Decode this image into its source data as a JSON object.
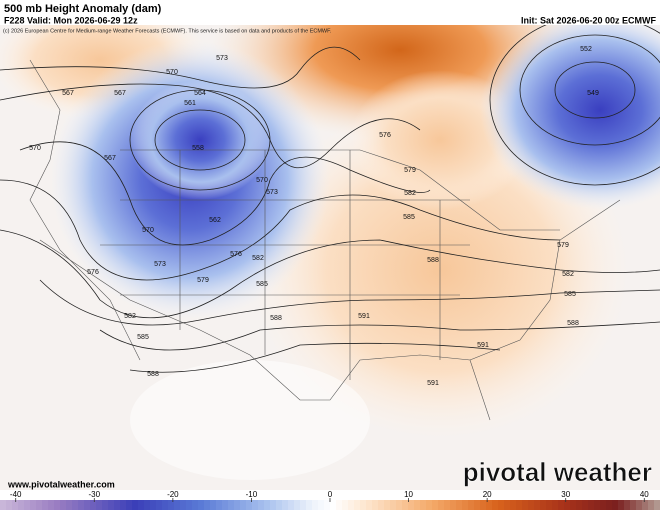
{
  "header": {
    "title": "500 mb Height Anomaly (dam)",
    "valid": "F228 Valid: Mon 2026-06-29 12z",
    "init": "Init: Sat 2026-06-20 00z ECMWF",
    "copyright": "(c) 2026 European Centre for Medium-range Weather Forecasts (ECMWF). This service is based on data and products of the ECMWF."
  },
  "contour_labels": [
    570,
    573,
    564,
    567,
    567,
    561,
    558,
    567,
    570,
    570,
    573,
    562,
    570,
    576,
    582,
    573,
    579,
    576,
    585,
    582,
    588,
    585,
    588,
    591,
    591,
    591,
    576,
    579,
    582,
    585,
    588,
    579,
    582,
    585,
    588,
    552,
    549
  ],
  "footer": {
    "website": "www.pivotalweather.com",
    "brand": "pivotal weather"
  },
  "colorbar": {
    "lim": [
      -42,
      42
    ],
    "ticks": [
      -40,
      -30,
      -20,
      -10,
      0,
      10,
      20,
      30,
      40
    ]
  }
}
